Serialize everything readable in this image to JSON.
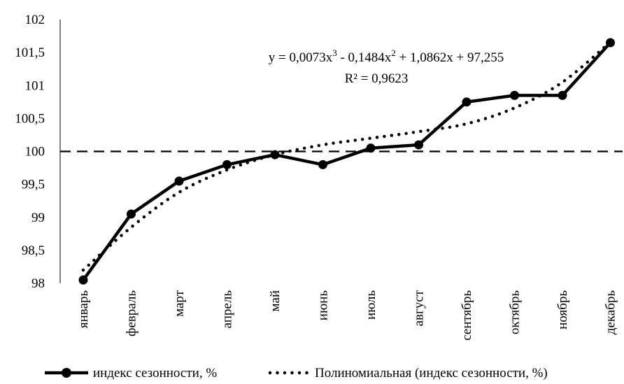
{
  "chart_data": {
    "type": "line",
    "categories": [
      "январь",
      "февраль",
      "март",
      "апрель",
      "май",
      "июнь",
      "июль",
      "август",
      "сентябрь",
      "октябрь",
      "ноябрь",
      "декабрь"
    ],
    "series": [
      {
        "name": "индекс сезонности, %",
        "values": [
          98.05,
          99.05,
          99.55,
          99.8,
          99.95,
          99.8,
          100.05,
          100.1,
          100.75,
          100.85,
          100.85,
          101.65
        ],
        "color": "#000000",
        "style": "solid-markers"
      },
      {
        "name": "Полиномиальная (индекс сезонности, %)",
        "values": [
          98.2,
          98.85,
          99.38,
          99.72,
          99.95,
          100.1,
          100.2,
          100.3,
          100.42,
          100.66,
          101.05,
          101.66
        ],
        "color": "#000000",
        "style": "dotted"
      }
    ],
    "reference_line": {
      "y": 100,
      "style": "dashed"
    },
    "ylim": [
      98,
      102
    ],
    "yticks": [
      "98",
      "98,5",
      "99",
      "99,5",
      "100",
      "100,5",
      "101",
      "101,5",
      "102"
    ],
    "ytick_values": [
      98,
      98.5,
      99,
      99.5,
      100,
      100.5,
      101,
      101.5,
      102
    ],
    "annotation": {
      "equation_parts": [
        "y = 0,0073x",
        "3",
        " - 0,1484x",
        "2",
        " + 1,0862x + 97,255"
      ],
      "r2": "R² = 0,9623"
    },
    "legend_position": "bottom",
    "grid": false
  }
}
